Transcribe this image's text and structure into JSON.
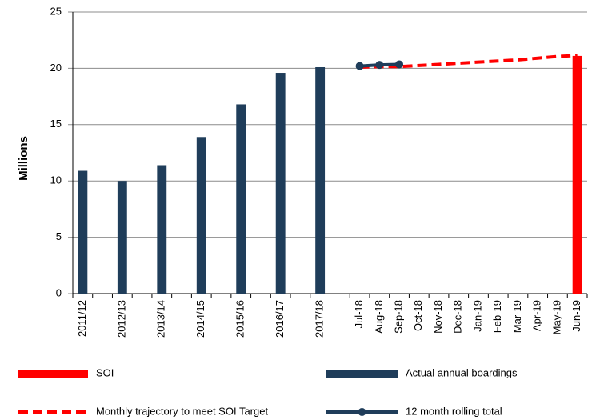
{
  "chart_data": {
    "type": "bar",
    "y_label": "Millions",
    "categories": [
      "2011/12",
      null,
      "2012/13",
      null,
      "2013/14",
      null,
      "2014/15",
      null,
      "2015/16",
      null,
      "2016/17",
      null,
      "2017/18",
      null,
      "Jul-18",
      "Aug-18",
      "Sep-18",
      "Oct-18",
      "Nov-18",
      "Dec-18",
      "Jan-19",
      "Feb-19",
      "Mar-19",
      "Apr-19",
      "May-19",
      "Jun-19"
    ],
    "series": [
      {
        "name": "SOI",
        "type": "bar",
        "color": "#ff0000",
        "values": [
          null,
          null,
          null,
          null,
          null,
          null,
          null,
          null,
          null,
          null,
          null,
          null,
          null,
          null,
          null,
          null,
          null,
          null,
          null,
          null,
          null,
          null,
          null,
          null,
          null,
          21.1
        ]
      },
      {
        "name": "Actual annual boardings",
        "type": "bar",
        "color": "#1f3d5a",
        "values": [
          10.9,
          null,
          10.0,
          null,
          11.4,
          null,
          13.9,
          null,
          16.8,
          null,
          19.6,
          null,
          20.1,
          null,
          null,
          null,
          null,
          null,
          null,
          null,
          null,
          null,
          null,
          null,
          null,
          null
        ]
      },
      {
        "name": "Monthly trajectory to meet SOI Target",
        "type": "line",
        "dashed": true,
        "color": "#ff0000",
        "values": [
          null,
          null,
          null,
          null,
          null,
          null,
          null,
          null,
          null,
          null,
          null,
          null,
          null,
          null,
          20.1,
          20.15,
          20.15,
          20.25,
          20.35,
          20.45,
          20.55,
          20.65,
          20.75,
          20.9,
          21.05,
          21.15
        ]
      },
      {
        "name": "12 month rolling total",
        "type": "line",
        "markers": true,
        "color": "#1f3d5a",
        "values": [
          null,
          null,
          null,
          null,
          null,
          null,
          null,
          null,
          null,
          null,
          null,
          null,
          null,
          null,
          20.2,
          20.3,
          20.35,
          null,
          null,
          null,
          null,
          null,
          null,
          null,
          null,
          null
        ]
      }
    ],
    "ylim": [
      0,
      25
    ],
    "yticks": [
      0,
      5,
      10,
      15,
      20,
      25
    ],
    "grid": true
  }
}
